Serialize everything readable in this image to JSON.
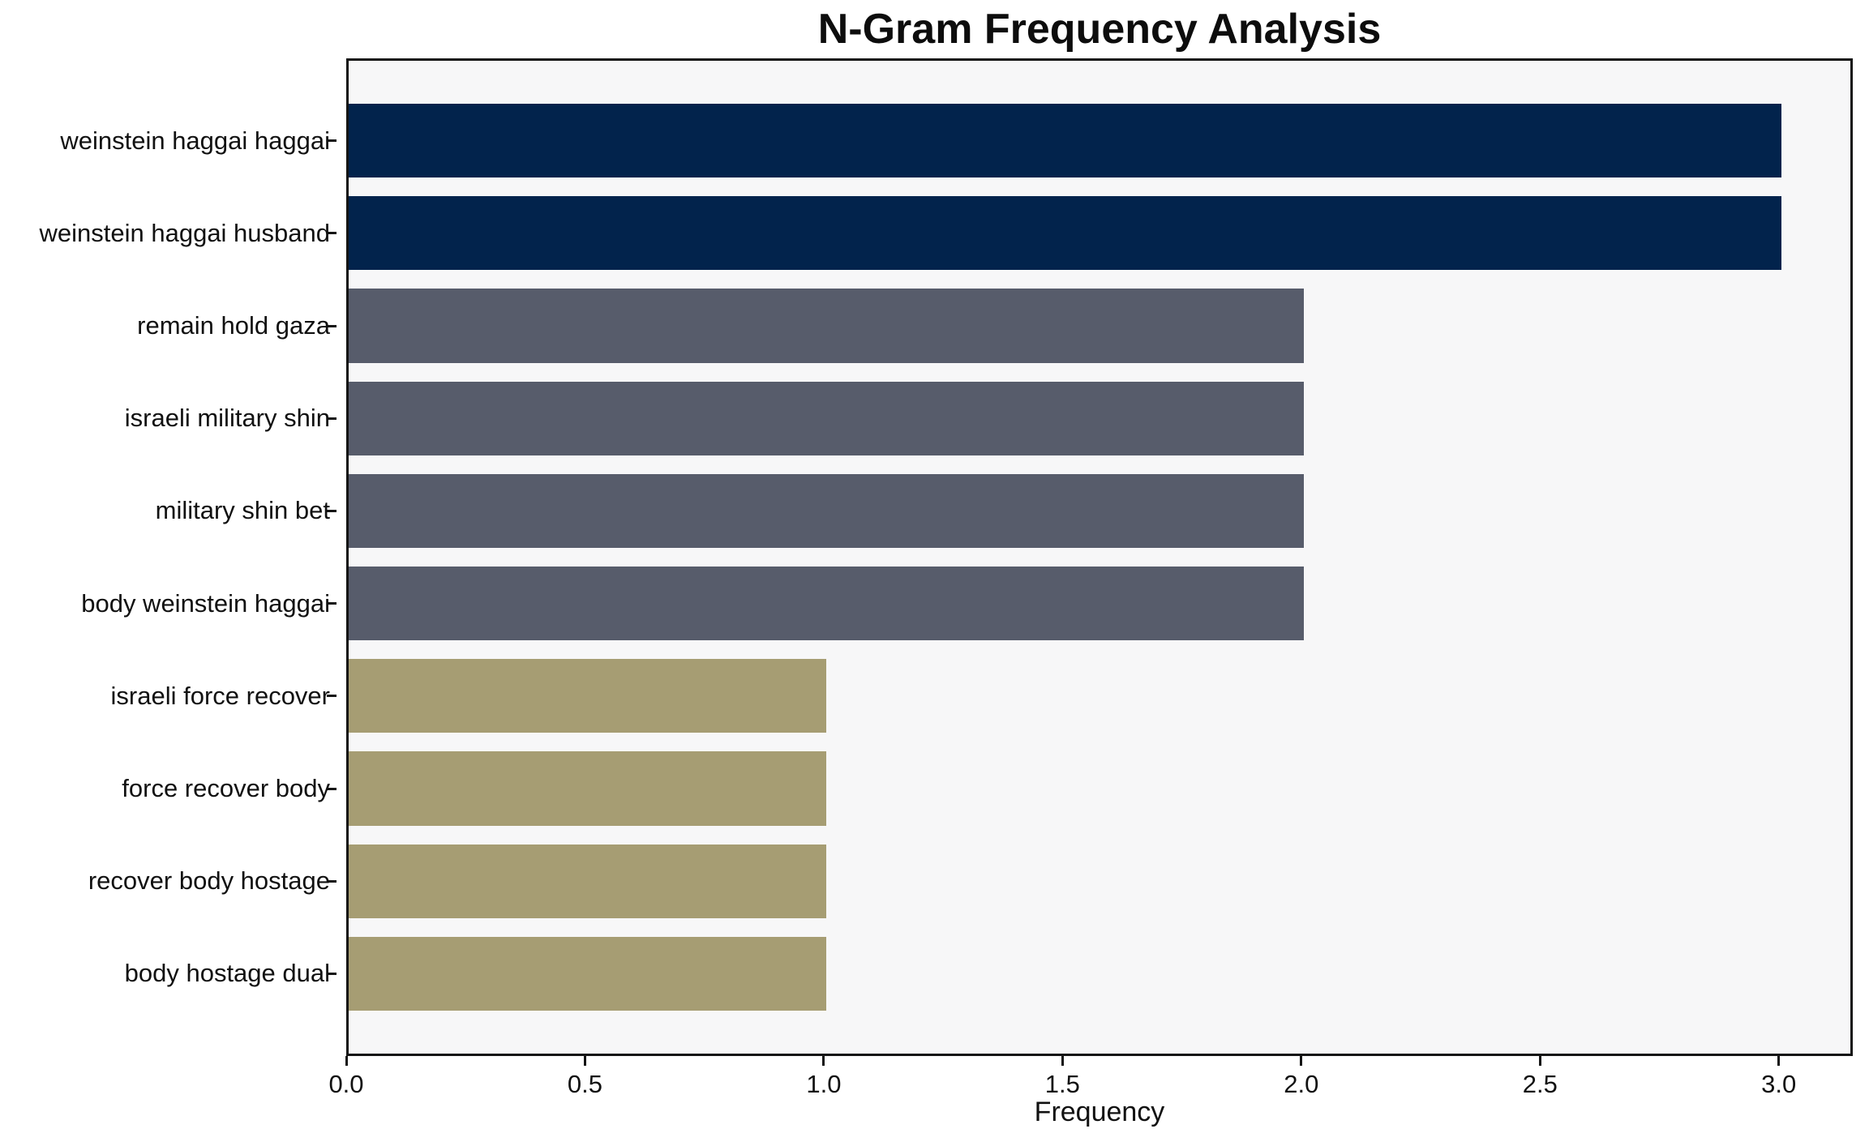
{
  "page": {
    "background": "#ffffff"
  },
  "chart_data": {
    "type": "bar",
    "orientation": "horizontal",
    "title": "N-Gram Frequency Analysis",
    "xlabel": "Frequency",
    "ylabel": "",
    "categories": [
      "weinstein haggai haggai",
      "weinstein haggai husband",
      "remain hold gaza",
      "israeli military shin",
      "military shin bet",
      "body weinstein haggai",
      "israeli force recover",
      "force recover body",
      "recover body hostage",
      "body hostage dual"
    ],
    "values": [
      3,
      3,
      2,
      2,
      2,
      2,
      1,
      1,
      1,
      1
    ],
    "bar_colors": [
      "#02234c",
      "#02234c",
      "#575c6b",
      "#575c6b",
      "#575c6b",
      "#575c6b",
      "#a69d73",
      "#a69d73",
      "#a69d73",
      "#a69d73"
    ],
    "xlim": [
      0,
      3.155
    ],
    "xticks": [
      {
        "label": "0.0",
        "value": 0.0
      },
      {
        "label": "0.5",
        "value": 0.5
      },
      {
        "label": "1.0",
        "value": 1.0
      },
      {
        "label": "1.5",
        "value": 1.5
      },
      {
        "label": "2.0",
        "value": 2.0
      },
      {
        "label": "2.5",
        "value": 2.5
      },
      {
        "label": "3.0",
        "value": 3.0
      }
    ],
    "grid": false,
    "legend_position": "none",
    "colors": {
      "freq_3": "#02234c",
      "freq_2": "#575c6b",
      "freq_1": "#a69d73",
      "plot_background": "#f7f7f8",
      "spine": "#141414",
      "text": "#111111"
    }
  }
}
